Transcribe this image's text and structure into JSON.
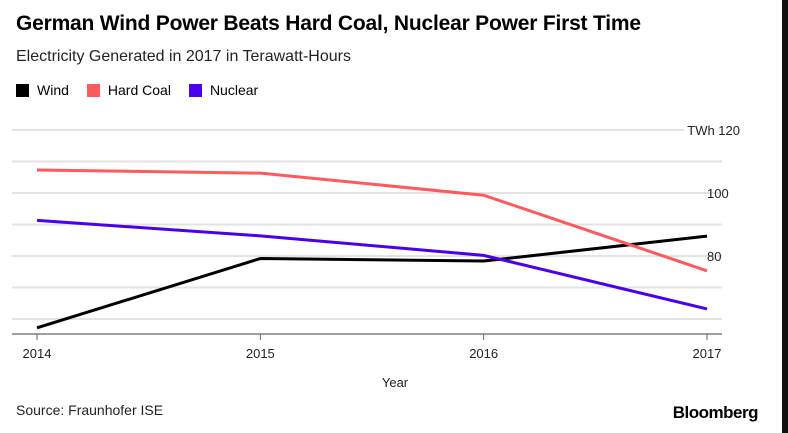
{
  "chart_data": {
    "type": "line",
    "title": "German Wind Power Beats Hard Coal, Nuclear Power First Time",
    "subtitle": "Electricity Generated in 2017 in Terawatt-Hours",
    "xlabel": "Year",
    "ylabel": "",
    "y_unit": "TWh",
    "categories": [
      "2014",
      "2015",
      "2016",
      "2017"
    ],
    "ylim": [
      55,
      120
    ],
    "yticks": [
      60,
      70,
      80,
      90,
      100,
      110,
      120
    ],
    "ytick_labels": {
      "120": "120",
      "100": "100",
      "80": "80"
    },
    "grid": true,
    "legend_position": "top-left",
    "series": [
      {
        "name": "Wind",
        "color": "#000000",
        "values": [
          57.2,
          79.2,
          78.4,
          86.3
        ]
      },
      {
        "name": "Hard Coal",
        "color": "#ff5a5f",
        "values": [
          107.3,
          106.3,
          99.3,
          75.3
        ]
      },
      {
        "name": "Nuclear",
        "color": "#4a00e8",
        "values": [
          91.3,
          86.4,
          80.2,
          63.2
        ]
      }
    ]
  },
  "source": "Source: Fraunhofer ISE",
  "brand": "Bloomberg"
}
